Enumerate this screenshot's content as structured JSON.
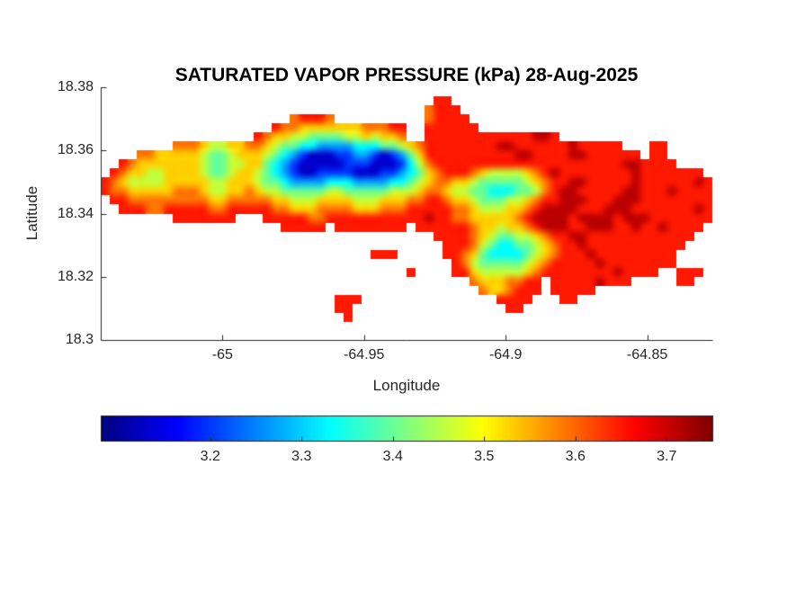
{
  "chart_data": {
    "type": "heatmap",
    "title": "SATURATED VAPOR PRESSURE (kPa) 28-Aug-2025",
    "xlabel": "Longitude",
    "ylabel": "Latitude",
    "units": "kPa",
    "xlim": [
      -65.043,
      -64.827
    ],
    "ylim": [
      18.3,
      18.38
    ],
    "xticks": [
      -65,
      -64.95,
      -64.9,
      -64.85
    ],
    "xtick_labels": [
      "-65",
      "-64.95",
      "-64.9",
      "-64.85"
    ],
    "yticks": [
      18.38,
      18.36,
      18.34,
      18.32,
      18.3
    ],
    "ytick_labels": [
      "18.38",
      "18.36",
      "18.34",
      "18.32",
      "18.3"
    ],
    "colormap": "jet",
    "grid_lines": false,
    "colorbar": {
      "orientation": "horizontal",
      "clim": [
        3.08,
        3.75
      ],
      "ticks": [
        3.2,
        3.3,
        3.4,
        3.5,
        3.6,
        3.7
      ],
      "tick_labels": [
        "3.2",
        "3.3",
        "3.4",
        "3.5",
        "3.6",
        "3.7"
      ]
    },
    "grid": {
      "ncols": 68,
      "nrows": 28,
      "sea_char": ".",
      "value_of_digit": {
        "0": 3.13,
        "1": 3.2,
        "2": 3.27,
        "3": 3.33,
        "4": 3.4,
        "5": 3.46,
        "6": 3.53,
        "7": 3.59,
        "8": 3.65,
        "9": 3.71
      },
      "row_chunks": [
        [
          "..........",
          "..........",
          "..........",
          "..........",
          "..........",
          "..........",
          "........"
        ],
        [
          "..........",
          "..........",
          "..........",
          ".......88.",
          "..........",
          "..........",
          "........"
        ],
        [
          "..........",
          "..........",
          "..........",
          "......7888",
          "..........",
          "..........",
          "........"
        ],
        [
          "..........",
          "..........",
          ".78887....",
          "......7888",
          "8.........",
          "..........",
          "........"
        ],
        [
          "..........",
          ".........8",
          "7766666667",
          "7788..8888",
          "88........",
          "..........",
          "........"
        ],
        [
          "..........",
          ".......876",
          "6554444556",
          "5667..8888",
          "8888888899",
          "8.........",
          "........"
        ],
        [
          "........77",
          "7655667765",
          "4433222233",
          "3445678888",
          "8888998888",
          "88988888..",
          ".88....."
        ],
        [
          "....776666",
          "6544566654",
          "3210001122",
          "1012468888",
          "8888889988",
          "8899888888",
          ".88....."
        ],
        [
          "..87666666",
          "6544556643",
          "2100000111",
          "0001357888",
          "8888888888",
          "8888888899",
          "8888...."
        ],
        [
          ".876655666",
          "6544566543",
          "2100111100",
          "0112346788",
          "8765555678",
          "9888888889",
          "8888888."
        ],
        [
          "8765555666",
          "6655666544",
          "3222233322",
          "2233456776",
          "6544444567",
          "8899888889",
          "88888898"
        ],
        [
          "8776666677",
          "7655667655",
          "4444455444",
          "4455567765",
          "5443334457",
          "8998888899",
          "88898888"
        ],
        [
          ".887777777",
          "7766777776",
          "6555666655",
          "5666778876",
          "6544455678",
          "8999888999",
          "88888888"
        ],
        [
          "..88877888",
          "8877888887",
          "7666777766",
          "6777888887",
          "7655566789",
          "9998889998",
          "88888898"
        ],
        [
          "........88",
          "88888...88",
          "8887788888",
          "8888889887",
          "7666667899",
          "9989999899",
          "98888888"
        ],
        [
          "..........",
          "..........",
          "88888.8888",
          "8888.88888",
          "8766566789",
          "9988999889",
          "8898888."
        ],
        [
          "..........",
          "..........",
          "..........",
          ".......888",
          "8765445567",
          "8899888888",
          "888888.."
        ],
        [
          "..........",
          "..........",
          "..........",
          "........88",
          "8754334456",
          "7889888888",
          "88888..."
        ],
        [
          "..........",
          "..........",
          "..........",
          "888.....88",
          "7643333456",
          "7888988888",
          "8888...."
        ],
        [
          "..........",
          "..........",
          "..........",
          ".........8",
          "7544444567",
          "8888898888",
          "8888...."
        ],
        [
          "..........",
          "..........",
          "..........",
          "....8....8",
          "8655555678",
          "8888888988",
          "88..888."
        ],
        [
          "..........",
          "..........",
          "..........",
          "..........",
          ".76667788.",
          "888889888.",
          "....88.."
        ],
        [
          "..........",
          "..........",
          "..........",
          "..........",
          "..7667888.",
          "88888.....",
          "........"
        ],
        [
          "..........",
          "..........",
          "......888.",
          "..........",
          "....8888..",
          ".88.......",
          "........"
        ],
        [
          "..........",
          "..........",
          "......88..",
          "..........",
          ".....88...",
          "..........",
          "........"
        ],
        [
          "..........",
          "..........",
          ".......8..",
          "..........",
          "..........",
          "..........",
          "........"
        ],
        [
          "..........",
          "..........",
          "..........",
          "..........",
          "..........",
          "..........",
          "........"
        ],
        [
          "..........",
          "..........",
          "..........",
          "..........",
          "..........",
          "..........",
          "........"
        ]
      ]
    }
  }
}
